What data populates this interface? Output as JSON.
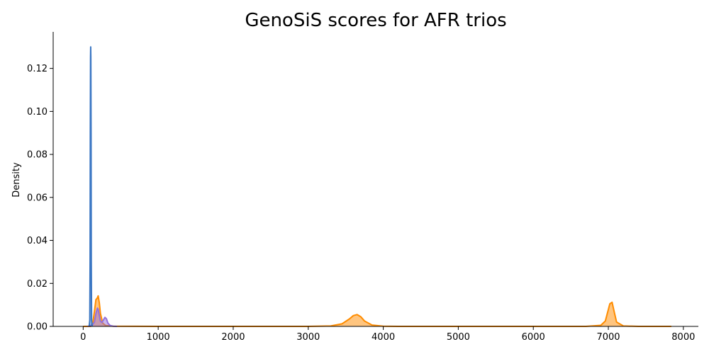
{
  "chart_data": {
    "type": "area",
    "title": "GenoSiS scores for AFR trios",
    "xlabel": "",
    "ylabel": "Density",
    "xlim": [
      -400,
      8200
    ],
    "ylim": [
      0,
      0.137
    ],
    "x_ticks": [
      0,
      1000,
      2000,
      3000,
      4000,
      5000,
      6000,
      7000,
      8000
    ],
    "x_tick_labels": [
      "0",
      "1000",
      "2000",
      "3000",
      "4000",
      "5000",
      "6000",
      "7000",
      "8000"
    ],
    "y_ticks": [
      0.0,
      0.02,
      0.04,
      0.06,
      0.08,
      0.1,
      0.12
    ],
    "y_tick_labels": [
      "0.00",
      "0.02",
      "0.04",
      "0.06",
      "0.08",
      "0.10",
      "0.12"
    ],
    "grid": false,
    "series": [
      {
        "color": "#ff8c00",
        "fill_opacity": 0.5,
        "x": [
          0,
          100,
          130,
          150,
          170,
          185,
          200,
          215,
          230,
          260,
          300,
          400,
          1000,
          2000,
          3000,
          3300,
          3450,
          3550,
          3600,
          3650,
          3700,
          3750,
          3850,
          4000,
          4200,
          5000,
          6000,
          6700,
          6900,
          6960,
          6990,
          7020,
          7050,
          7080,
          7110,
          7200,
          7400,
          7840
        ],
        "values": [
          0.0,
          0.0,
          0.002,
          0.007,
          0.0125,
          0.013,
          0.0142,
          0.011,
          0.006,
          0.0015,
          0.0004,
          0.0001,
          0.0,
          0.0,
          0.0,
          0.0002,
          0.0012,
          0.0035,
          0.005,
          0.0055,
          0.0045,
          0.0025,
          0.0006,
          0.0001,
          0.0,
          0.0,
          0.0,
          0.0,
          0.0005,
          0.0025,
          0.0065,
          0.0105,
          0.0112,
          0.0065,
          0.002,
          0.0002,
          0.0,
          0.0
        ]
      },
      {
        "color": "#9370db",
        "fill_opacity": 0.5,
        "x": [
          60,
          120,
          150,
          170,
          190,
          200,
          210,
          230,
          250,
          270,
          290,
          310,
          330,
          360,
          400,
          450
        ],
        "values": [
          0.0,
          0.0006,
          0.002,
          0.006,
          0.0085,
          0.008,
          0.006,
          0.0025,
          0.0018,
          0.003,
          0.0042,
          0.0035,
          0.0015,
          0.0004,
          0.0001,
          0.0
        ]
      },
      {
        "color": "#3a76c3",
        "fill_opacity": 0.4,
        "x": [
          80,
          88,
          92,
          95,
          98,
          100,
          102,
          105,
          108,
          112,
          120
        ],
        "values": [
          0.0,
          0.003,
          0.03,
          0.09,
          0.125,
          0.13,
          0.125,
          0.09,
          0.03,
          0.003,
          0.0
        ]
      }
    ]
  }
}
